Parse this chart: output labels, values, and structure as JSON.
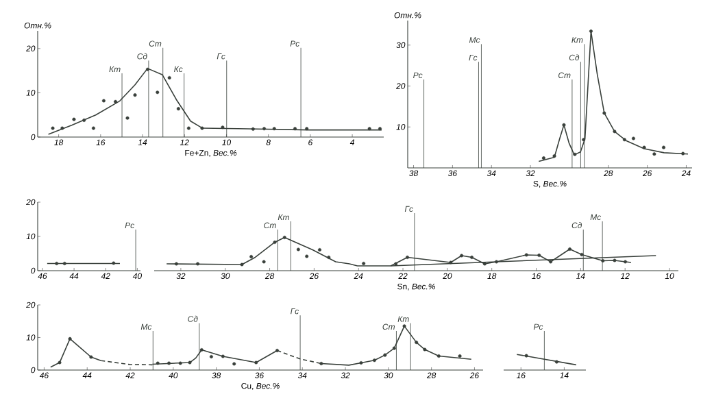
{
  "chart_data": [
    {
      "type": "scatter",
      "ylabel": "Отн.%",
      "xlabel": "Fe+Zn, *Вес.%*",
      "xlim": [
        19,
        2.5
      ],
      "ylim": [
        0,
        24
      ],
      "xticks": [
        18,
        16,
        14,
        12,
        10,
        8,
        6,
        4
      ],
      "yticks": [
        0,
        10,
        20
      ],
      "series": [
        {
          "type": "line",
          "color": "#39403b",
          "line_style": "solid",
          "x": [
            18.49,
            17.36,
            16.23,
            15.1,
            14.36,
            13.76,
            13.06,
            12.38,
            11.71,
            11.14,
            9.45,
            6.06,
            2.6
          ],
          "values": [
            0.6,
            2.7,
            5.0,
            8.1,
            11.8,
            15.5,
            14.1,
            8.4,
            3.6,
            2.0,
            1.9,
            1.6,
            1.6
          ]
        },
        {
          "color": "#39403b",
          "marker": "circle",
          "x": [
            18.28,
            17.83,
            17.27,
            16.79,
            16.34,
            15.85,
            15.29,
            14.72,
            14.36,
            13.76,
            13.29,
            12.72,
            12.29,
            11.8,
            11.16,
            10.18,
            8.73,
            8.2,
            7.72,
            6.73,
            6.17,
            3.18,
            2.68
          ],
          "values": [
            2.0,
            2.0,
            4.0,
            3.8,
            2.0,
            8.2,
            8.0,
            4.3,
            9.5,
            15.3,
            10.1,
            13.4,
            6.4,
            2.0,
            2.0,
            2.2,
            1.8,
            1.9,
            1.9,
            1.9,
            1.9,
            1.9,
            1.9
          ]
        }
      ],
      "ref_lines": [
        {
          "axis": "x",
          "value": 14.98,
          "label": "Кт"
        },
        {
          "axis": "x",
          "value": 13.71,
          "label": "Сд"
        },
        {
          "axis": "x",
          "value": 13.03,
          "label": "Ст"
        },
        {
          "axis": "x",
          "value": 12.02,
          "label": "Кс"
        },
        {
          "axis": "x",
          "value": 9.99,
          "label": "Гс"
        },
        {
          "axis": "x",
          "value": 6.45,
          "label": "Рс"
        }
      ]
    },
    {
      "type": "scatter",
      "ylabel": "Отн.%",
      "xlabel": "S, *Вес.%*",
      "xlim": [
        38.3,
        23.7
      ],
      "ylim": [
        0,
        36
      ],
      "xticks": [
        38,
        36,
        34,
        32,
        28,
        26,
        24
      ],
      "yticks": [
        10,
        20,
        30
      ],
      "series": [
        {
          "type": "line",
          "color": "#39403b",
          "line_style": "solid",
          "x": [
            31.57,
            30.77,
            30.5,
            30.28,
            30.02,
            29.75,
            29.43,
            29.2,
            28.89,
            28.57,
            28.21,
            27.68,
            27.07,
            26.16,
            25.14,
            23.91
          ],
          "values": [
            1.6,
            2.6,
            7.1,
            10.5,
            6.1,
            3.2,
            3.9,
            7.1,
            33.4,
            22.9,
            13.4,
            8.9,
            6.6,
            4.7,
            3.7,
            3.4
          ]
        },
        {
          "color": "#39403b",
          "marker": "circle",
          "x": [
            31.32,
            30.77,
            30.28,
            29.72,
            29.27,
            28.89,
            28.21,
            27.68,
            27.17,
            26.71,
            26.16,
            25.64,
            25.16,
            24.17
          ],
          "values": [
            2.4,
            2.9,
            10.5,
            3.3,
            6.9,
            33.4,
            13.4,
            8.9,
            6.9,
            7.2,
            5.0,
            3.4,
            5.0,
            3.5
          ]
        }
      ],
      "ref_lines": [
        {
          "axis": "x",
          "value": 37.47,
          "label": "Рс"
        },
        {
          "axis": "x",
          "value": 34.66,
          "label": "Гс"
        },
        {
          "axis": "x",
          "value": 34.52,
          "label": "Мс"
        },
        {
          "axis": "x",
          "value": 29.86,
          "label": "Ст"
        },
        {
          "axis": "x",
          "value": 29.42,
          "label": "Сд"
        },
        {
          "axis": "x",
          "value": 29.23,
          "label": "Кт"
        }
      ]
    },
    {
      "type": "scatter",
      "xlim": [
        46.3,
        39.8
      ],
      "ylim": [
        0,
        20
      ],
      "xticks": [
        46,
        44,
        42,
        40
      ],
      "yticks": [
        0,
        10,
        20
      ],
      "series": [
        {
          "type": "line",
          "color": "#39403b",
          "line_style": "solid",
          "x": [
            45.7,
            41.1
          ],
          "values": [
            2.1,
            2.1
          ]
        },
        {
          "color": "#39403b",
          "marker": "circle",
          "x": [
            45.1,
            44.6,
            41.5
          ],
          "values": [
            2.1,
            2.1,
            2.2
          ]
        }
      ],
      "ref_lines": [
        {
          "axis": "x",
          "value": 40.1,
          "label": "Рс"
        }
      ]
    },
    {
      "type": "scatter",
      "xlabel": "Sn, *Вес.%*",
      "xlim": [
        33.2,
        9.6
      ],
      "ylim": [
        0,
        20
      ],
      "xticks": [
        32,
        30,
        28,
        26,
        24,
        22,
        20,
        18,
        16,
        14,
        12,
        10
      ],
      "tick_labels": "x",
      "series": [
        {
          "type": "line",
          "color": "#39403b",
          "line_style": "solid",
          "x": [
            32.64,
            29.25,
            28.65,
            27.77,
            27.33,
            26.07,
            25.03,
            24.41,
            24.05,
            22.55,
            21.8,
            19.85,
            19.36,
            18.9,
            18.32,
            17.79,
            16.44,
            15.87,
            15.35,
            14.49,
            13.95,
            13.0,
            12.47,
            11.99,
            11.73
          ],
          "values": [
            2.0,
            1.8,
            3.9,
            8.3,
            9.7,
            6.1,
            2.6,
            2.0,
            1.4,
            1.4,
            3.9,
            2.4,
            4.4,
            3.9,
            2.0,
            2.6,
            4.6,
            4.5,
            2.6,
            6.3,
            4.7,
            2.9,
            3.0,
            2.6,
            2.4
          ]
        },
        {
          "type": "line",
          "color": "#39403b",
          "line_style": "solid",
          "x": [
            22.55,
            10.61
          ],
          "values": [
            1.4,
            4.4
          ]
        },
        {
          "color": "#39403b",
          "marker": "circle",
          "x": [
            32.2,
            31.24,
            29.25,
            28.83,
            28.26,
            27.77,
            27.33,
            26.71,
            26.33,
            25.75,
            25.34,
            23.77,
            22.32,
            21.8,
            19.85,
            19.36,
            18.9,
            18.32,
            17.79,
            16.44,
            15.87,
            15.35,
            14.49,
            13.95,
            13.0,
            12.47,
            11.99
          ],
          "values": [
            2.0,
            2.0,
            1.8,
            4.1,
            2.6,
            8.3,
            9.7,
            6.2,
            4.2,
            6.1,
            3.9,
            2.1,
            2.0,
            3.9,
            2.4,
            4.4,
            3.9,
            2.0,
            2.6,
            4.6,
            4.5,
            2.6,
            6.3,
            4.7,
            2.9,
            3.0,
            2.6
          ]
        }
      ],
      "ref_lines": [
        {
          "axis": "x",
          "value": 27.64,
          "label": "Ст"
        },
        {
          "axis": "x",
          "value": 27.05,
          "label": "Кт"
        },
        {
          "axis": "x",
          "value": 21.48,
          "label": "Гс"
        },
        {
          "axis": "x",
          "value": 13.88,
          "label": "Сд"
        },
        {
          "axis": "x",
          "value": 13.02,
          "label": "Мс"
        }
      ]
    },
    {
      "type": "scatter",
      "xlabel": "Cu, *Вес.%*",
      "xlim": [
        46.3,
        25.6
      ],
      "ylim": [
        0,
        20
      ],
      "xticks": [
        46,
        44,
        42,
        40,
        38,
        36,
        34,
        32,
        30,
        28,
        26
      ],
      "yticks": [
        0,
        10,
        20
      ],
      "series": [
        {
          "type": "line",
          "color": "#39403b",
          "line_style": "solid",
          "x": [
            45.7,
            45.28,
            44.8,
            43.82,
            43.36
          ],
          "values": [
            0.9,
            2.3,
            9.6,
            4.0,
            2.9
          ]
        },
        {
          "type": "line",
          "color": "#39403b",
          "line_style": "dashed",
          "x": [
            43.36,
            42.03,
            40.97
          ],
          "values": [
            2.9,
            1.7,
            1.6
          ]
        },
        {
          "type": "line",
          "color": "#39403b",
          "line_style": "solid",
          "x": [
            40.97,
            39.23,
            38.95,
            38.68,
            37.69,
            36.15,
            35.17
          ],
          "values": [
            1.8,
            2.3,
            3.7,
            6.2,
            4.2,
            2.3,
            6.0
          ]
        },
        {
          "type": "line",
          "color": "#39403b",
          "line_style": "dashed",
          "x": [
            35.17,
            34.1,
            33.12
          ],
          "values": [
            6.0,
            3.4,
            2.0
          ]
        },
        {
          "type": "line",
          "color": "#39403b",
          "line_style": "solid",
          "x": [
            33.12,
            31.84,
            31.27,
            30.65,
            30.16,
            29.73,
            29.26,
            28.7,
            28.31,
            27.66,
            26.15
          ],
          "values": [
            2.0,
            1.5,
            2.2,
            3.0,
            4.6,
            6.7,
            13.5,
            8.5,
            6.3,
            4.3,
            3.3
          ]
        },
        {
          "color": "#39403b",
          "marker": "circle",
          "x": [
            45.28,
            44.8,
            43.82,
            40.72,
            40.2,
            39.67,
            39.23,
            38.68,
            38.23,
            37.69,
            37.17,
            36.15,
            35.17,
            33.12,
            31.27,
            30.65,
            30.16,
            29.73,
            29.26,
            28.7,
            28.31,
            27.66,
            26.68
          ],
          "values": [
            2.3,
            9.6,
            4.0,
            2.1,
            2.1,
            2.1,
            2.3,
            6.2,
            4.1,
            4.2,
            1.9,
            2.3,
            6.0,
            2.0,
            2.2,
            3.0,
            4.6,
            6.7,
            13.5,
            8.5,
            6.3,
            4.3,
            4.3
          ]
        }
      ],
      "ref_lines": [
        {
          "axis": "x",
          "value": 40.94,
          "label": "Мс"
        },
        {
          "axis": "x",
          "value": 38.79,
          "label": "Сд"
        },
        {
          "axis": "x",
          "value": 34.1,
          "label": "Гс"
        },
        {
          "axis": "x",
          "value": 29.63,
          "label": "Ст"
        },
        {
          "axis": "x",
          "value": 28.97,
          "label": "Кт"
        }
      ]
    },
    {
      "type": "scatter",
      "xlim": [
        16.8,
        13.0
      ],
      "ylim": [
        0,
        20
      ],
      "xticks": [
        16,
        14
      ],
      "tick_labels": "x",
      "series": [
        {
          "type": "line",
          "color": "#39403b",
          "line_style": "solid",
          "x": [
            16.19,
            13.45
          ],
          "values": [
            4.8,
            1.6
          ]
        },
        {
          "color": "#39403b",
          "marker": "circle",
          "x": [
            15.75,
            14.35
          ],
          "values": [
            4.4,
            2.5
          ]
        }
      ],
      "ref_lines": [
        {
          "axis": "x",
          "value": 14.92,
          "label": "Рс"
        }
      ]
    }
  ]
}
